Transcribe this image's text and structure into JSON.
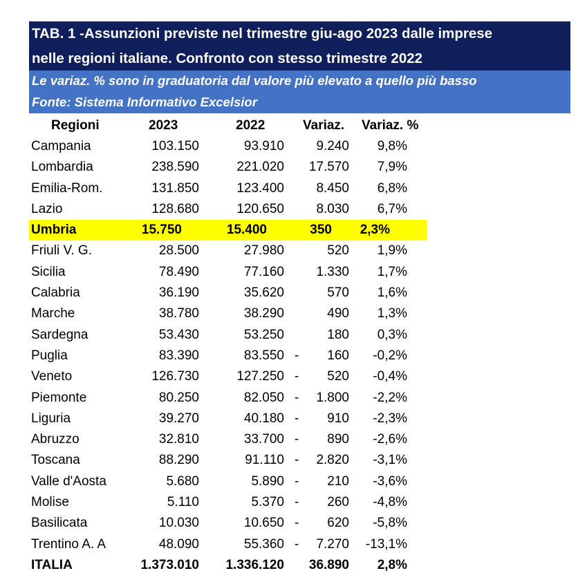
{
  "title": {
    "line1": "TAB. 1 -Assunzioni previste nel trimestre giu-ago 2023 dalle imprese",
    "line2": "nelle regioni italiane. Confronto con stesso trimestre 2022"
  },
  "subtitle": {
    "line1": "Le variaz. % sono in graduatoria dal valore più elevato a quello più basso",
    "line2": "Fonte: Sistema Informativo Excelsior"
  },
  "colors": {
    "title_bg": "#0f1f5c",
    "subtitle_bg": "#4472c4",
    "highlight": "#ffff00"
  },
  "table": {
    "headers": {
      "region": "Regioni",
      "y2023": "2023",
      "y2022": "2022",
      "var": "Variaz.",
      "pct": "Variaz. %"
    },
    "rows": [
      {
        "region": "Campania",
        "y2023": "103.150",
        "y2022": "93.910",
        "dash": "",
        "var": "9.240",
        "pct": "9,8%"
      },
      {
        "region": "Lombardia",
        "y2023": "238.590",
        "y2022": "221.020",
        "dash": "",
        "var": "17.570",
        "pct": "7,9%"
      },
      {
        "region": "Emilia-Rom.",
        "y2023": "131.850",
        "y2022": "123.400",
        "dash": "",
        "var": "8.450",
        "pct": "6,8%"
      },
      {
        "region": "Lazio",
        "y2023": "128.680",
        "y2022": "120.650",
        "dash": "",
        "var": "8.030",
        "pct": "6,7%"
      },
      {
        "region": "Umbria",
        "y2023": "15.750",
        "y2022": "15.400",
        "dash": "",
        "var": "350",
        "pct": "2,3%",
        "highlight": true
      },
      {
        "region": "Friuli V. G.",
        "y2023": "28.500",
        "y2022": "27.980",
        "dash": "",
        "var": "520",
        "pct": "1,9%"
      },
      {
        "region": "Sicilia",
        "y2023": "78.490",
        "y2022": "77.160",
        "dash": "",
        "var": "1.330",
        "pct": "1,7%"
      },
      {
        "region": "Calabria",
        "y2023": "36.190",
        "y2022": "35.620",
        "dash": "",
        "var": "570",
        "pct": "1,6%"
      },
      {
        "region": "Marche",
        "y2023": "38.780",
        "y2022": "38.290",
        "dash": "",
        "var": "490",
        "pct": "1,3%"
      },
      {
        "region": "Sardegna",
        "y2023": "53.430",
        "y2022": "53.250",
        "dash": "",
        "var": "180",
        "pct": "0,3%"
      },
      {
        "region": "Puglia",
        "y2023": "83.390",
        "y2022": "83.550",
        "dash": "-",
        "var": "160",
        "pct": "-0,2%"
      },
      {
        "region": "Veneto",
        "y2023": "126.730",
        "y2022": "127.250",
        "dash": "-",
        "var": "520",
        "pct": "-0,4%"
      },
      {
        "region": "Piemonte",
        "y2023": "80.250",
        "y2022": "82.050",
        "dash": "-",
        "var": "1.800",
        "pct": "-2,2%"
      },
      {
        "region": "Liguria",
        "y2023": "39.270",
        "y2022": "40.180",
        "dash": "-",
        "var": "910",
        "pct": "-2,3%"
      },
      {
        "region": "Abruzzo",
        "y2023": "32.810",
        "y2022": "33.700",
        "dash": "-",
        "var": "890",
        "pct": "-2,6%"
      },
      {
        "region": "Toscana",
        "y2023": "88.290",
        "y2022": "91.110",
        "dash": "-",
        "var": "2.820",
        "pct": "-3,1%"
      },
      {
        "region": "Valle d'Aosta",
        "y2023": "5.680",
        "y2022": "5.890",
        "dash": "-",
        "var": "210",
        "pct": "-3,6%"
      },
      {
        "region": "Molise",
        "y2023": "5.110",
        "y2022": "5.370",
        "dash": "-",
        "var": "260",
        "pct": "-4,8%"
      },
      {
        "region": "Basilicata",
        "y2023": "10.030",
        "y2022": "10.650",
        "dash": "-",
        "var": "620",
        "pct": "-5,8%"
      },
      {
        "region": "Trentino A. A",
        "y2023": "48.090",
        "y2022": "55.360",
        "dash": "-",
        "var": "7.270",
        "pct": "-13,1%"
      }
    ],
    "total": {
      "region": "ITALIA",
      "y2023": "1.373.010",
      "y2022": "1.336.120",
      "dash": "",
      "var": "36.890",
      "pct": "2,8%"
    }
  }
}
